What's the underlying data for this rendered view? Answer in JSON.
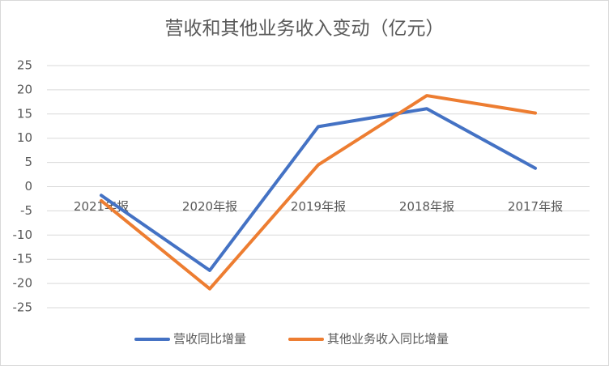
{
  "chart_data": {
    "type": "line",
    "title": "营收和其他业务收入变动（亿元）",
    "categories": [
      "2021年报",
      "2020年报",
      "2019年报",
      "2018年报",
      "2017年报"
    ],
    "series": [
      {
        "name": "营收同比增量",
        "color": "#4472c4",
        "values": [
          -1.8,
          -17.3,
          12.4,
          16.1,
          3.8
        ]
      },
      {
        "name": "其他业务收入同比增量",
        "color": "#ed7d31",
        "values": [
          -2.9,
          -21.1,
          4.5,
          18.8,
          15.2
        ]
      }
    ],
    "ylim": [
      -25,
      25
    ],
    "yticks": [
      -25,
      -20,
      -15,
      -10,
      -5,
      0,
      5,
      10,
      15,
      20,
      25
    ],
    "grid": true,
    "legend": "bottom"
  }
}
